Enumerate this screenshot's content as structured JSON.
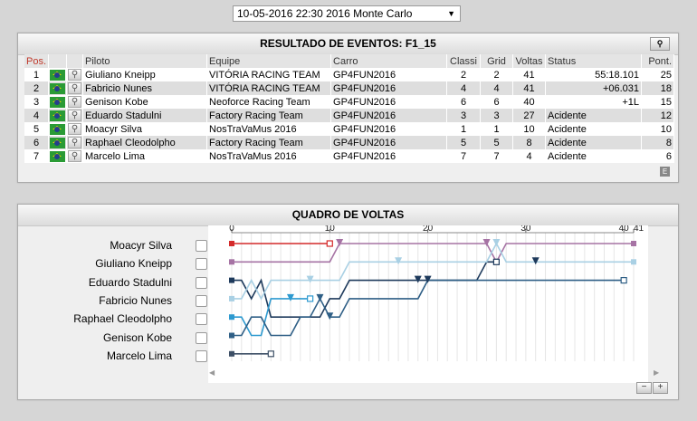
{
  "event_selector": {
    "value": "10-05-2016 22:30 2016 Monte Carlo"
  },
  "results": {
    "title": "RESULTADO DE EVENTOS: F1_15",
    "headers": {
      "pos": "Pos.",
      "driver": "Piloto",
      "team": "Equipe",
      "car": "Carro",
      "classif": "Classi",
      "grid": "Grid",
      "laps": "Voltas",
      "status": "Status",
      "points": "Pont."
    },
    "rows": [
      {
        "pos": "1",
        "driver": "Giuliano Kneipp",
        "team": "VITÓRIA RACING TEAM",
        "car": "GP4FUN2016",
        "classif": "2",
        "grid": "2",
        "laps": "41",
        "status": "55:18.101",
        "points": "25"
      },
      {
        "pos": "2",
        "driver": "Fabricio Nunes",
        "team": "VITÓRIA RACING TEAM",
        "car": "GP4FUN2016",
        "classif": "4",
        "grid": "4",
        "laps": "41",
        "status": "+06.031",
        "points": "18"
      },
      {
        "pos": "3",
        "driver": "Genison Kobe",
        "team": "Neoforce Racing Team",
        "car": "GP4FUN2016",
        "classif": "6",
        "grid": "6",
        "laps": "40",
        "status": "+1L",
        "points": "15"
      },
      {
        "pos": "4",
        "driver": "Eduardo Stadulni",
        "team": "Factory Racing Team",
        "car": "GP4FUN2016",
        "classif": "3",
        "grid": "3",
        "laps": "27",
        "status": "Acidente",
        "points": "12"
      },
      {
        "pos": "5",
        "driver": "Moacyr Silva",
        "team": "NosTraVaMus 2016",
        "car": "GP4FUN2016",
        "classif": "1",
        "grid": "1",
        "laps": "10",
        "status": "Acidente",
        "points": "10"
      },
      {
        "pos": "6",
        "driver": "Raphael Cleodolpho",
        "team": "Factory Racing Team",
        "car": "GP4FUN2016",
        "classif": "5",
        "grid": "5",
        "laps": "8",
        "status": "Acidente",
        "points": "8"
      },
      {
        "pos": "7",
        "driver": "Marcelo Lima",
        "team": "NosTraVaMus 2016",
        "car": "GP4FUN2016",
        "classif": "7",
        "grid": "7",
        "laps": "4",
        "status": "Acidente",
        "points": "6"
      }
    ],
    "export_label": "E"
  },
  "laps_chart": {
    "title": "QUADRO DE VOLTAS",
    "zoom_out": "−",
    "zoom_in": "+",
    "scroll_left": "◀",
    "scroll_right": "▶",
    "drivers": [
      "Moacyr Silva",
      "Giuliano Kneipp",
      "Eduardo Stadulni",
      "Fabricio Nunes",
      "Raphael Cleodolpho",
      "Genison Kobe",
      "Marcelo Lima"
    ]
  },
  "chart_data": {
    "type": "line",
    "x_ticks": [
      0,
      10,
      20,
      30,
      40,
      41
    ],
    "xlim": [
      0,
      41
    ],
    "y_positions": [
      1,
      2,
      3,
      4,
      5,
      6,
      7
    ],
    "series": [
      {
        "name": "Moacyr Silva",
        "color": "#d42a2a",
        "finish_lap": 10,
        "positions": [
          1,
          1,
          1,
          1,
          1,
          1,
          1,
          1,
          1,
          1,
          1
        ]
      },
      {
        "name": "Giuliano Kneipp",
        "color": "#a673a4",
        "finish_lap": 41,
        "positions": [
          2,
          2,
          2,
          2,
          2,
          2,
          2,
          2,
          2,
          2,
          2,
          1,
          1,
          1,
          1,
          1,
          1,
          1,
          1,
          1,
          1,
          1,
          1,
          1,
          1,
          1,
          1,
          2,
          1,
          1,
          1,
          1,
          1,
          1,
          1,
          1,
          1,
          1,
          1,
          1,
          1,
          1
        ]
      },
      {
        "name": "Eduardo Stadulni",
        "color": "#1e3a5c",
        "finish_lap": 27,
        "positions": [
          3,
          3,
          4,
          3,
          5,
          5,
          5,
          5,
          5,
          5,
          4,
          4,
          3,
          3,
          3,
          3,
          3,
          3,
          3,
          3,
          3,
          3,
          3,
          3,
          3,
          3,
          2,
          2
        ]
      },
      {
        "name": "Fabricio Nunes",
        "color": "#a9d0e4",
        "finish_lap": 41,
        "positions": [
          4,
          4,
          3,
          4,
          3,
          3,
          3,
          3,
          3,
          3,
          3,
          3,
          2,
          2,
          2,
          2,
          2,
          2,
          2,
          2,
          2,
          2,
          2,
          2,
          2,
          2,
          2,
          1,
          2,
          2,
          2,
          2,
          2,
          2,
          2,
          2,
          2,
          2,
          2,
          2,
          2,
          2
        ]
      },
      {
        "name": "Raphael Cleodolpho",
        "color": "#2e9ad0",
        "finish_lap": 8,
        "positions": [
          5,
          5,
          6,
          6,
          4,
          4,
          4,
          4,
          4
        ]
      },
      {
        "name": "Genison Kobe",
        "color": "#2f5f86",
        "finish_lap": 40,
        "positions": [
          6,
          6,
          5,
          5,
          6,
          6,
          6,
          5,
          5,
          4,
          5,
          5,
          4,
          4,
          4,
          4,
          4,
          4,
          4,
          4,
          3,
          3,
          3,
          3,
          3,
          3,
          3,
          3,
          3,
          3,
          3,
          3,
          3,
          3,
          3,
          3,
          3,
          3,
          3,
          3,
          3
        ]
      },
      {
        "name": "Marcelo Lima",
        "color": "#3d4f66",
        "finish_lap": 4,
        "positions": [
          7,
          7,
          7,
          7,
          7
        ]
      }
    ],
    "pit_markers": [
      {
        "name": "Giuliano Kneipp",
        "laps": [
          11,
          26
        ]
      },
      {
        "name": "Fabricio Nunes",
        "laps": [
          8,
          17,
          27
        ]
      },
      {
        "name": "Eduardo Stadulni",
        "laps": [
          19,
          20,
          31
        ]
      },
      {
        "name": "Genison Kobe",
        "laps": [
          9,
          10
        ]
      },
      {
        "name": "Raphael Cleodolpho",
        "laps": [
          6
        ]
      }
    ]
  }
}
